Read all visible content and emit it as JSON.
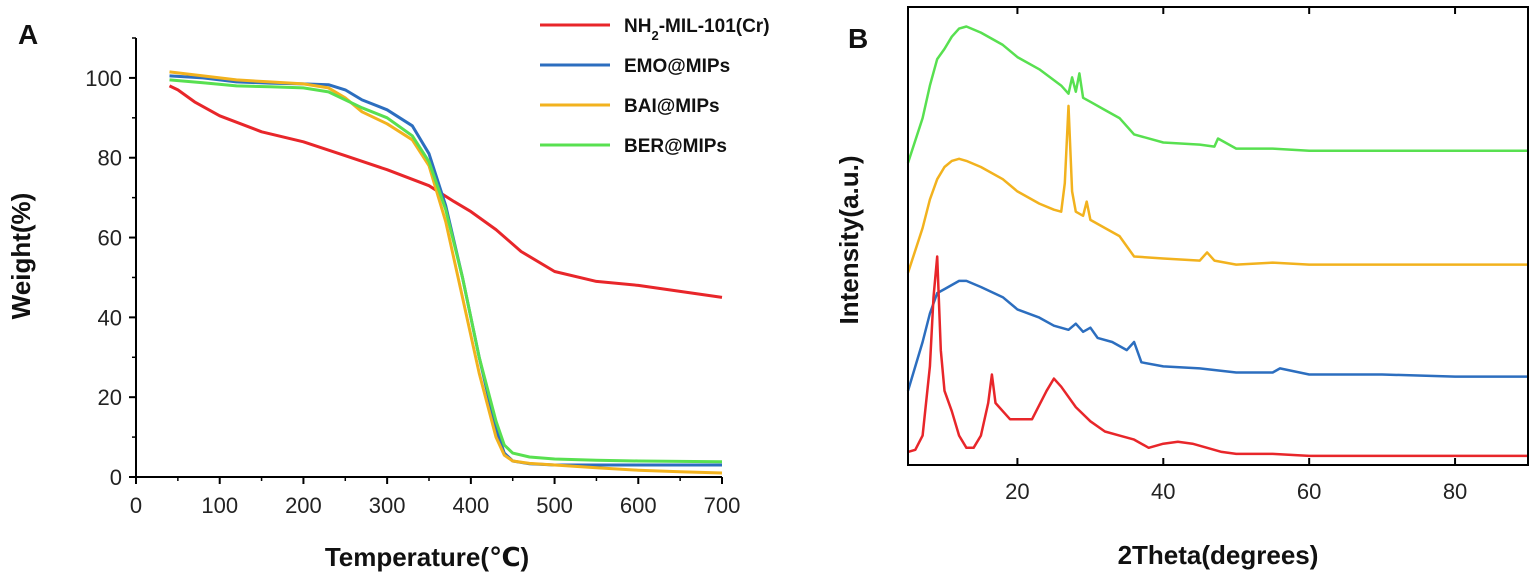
{
  "chart_data": [
    {
      "panel": "A",
      "type": "line",
      "xlabel": "Temperature(℃)",
      "ylabel": "Weight(%)",
      "xlim": [
        0,
        700
      ],
      "ylim": [
        0,
        110
      ],
      "xticks": [
        "0",
        "100",
        "200",
        "300",
        "400",
        "500",
        "600",
        "700"
      ],
      "yticks": [
        "0",
        "20",
        "40",
        "60",
        "80",
        "100"
      ],
      "grid": false,
      "legend_position": "top-right outside",
      "series": [
        {
          "name": "NH₂-MIL-101(Cr)",
          "color": "#e8262a",
          "x": [
            40,
            50,
            70,
            100,
            150,
            200,
            250,
            300,
            350,
            380,
            400,
            430,
            460,
            500,
            550,
            600,
            650,
            700
          ],
          "y": [
            98,
            97,
            94,
            90.5,
            86.5,
            84,
            80.5,
            77,
            73,
            69,
            66.5,
            62,
            56.5,
            51.5,
            49,
            48,
            46.5,
            45
          ]
        },
        {
          "name": "EMO@MIPs",
          "color": "#2c6ebf",
          "x": [
            40,
            80,
            120,
            160,
            200,
            230,
            250,
            270,
            300,
            330,
            350,
            370,
            390,
            410,
            430,
            440,
            450,
            470,
            500,
            550,
            600,
            650,
            700
          ],
          "y": [
            100.5,
            100,
            99,
            98.7,
            98.5,
            98.3,
            97,
            94.5,
            92,
            88,
            81,
            68,
            50,
            30,
            12,
            6,
            4,
            3.3,
            3,
            3,
            3,
            3,
            3
          ]
        },
        {
          "name": "BAI@MIPs",
          "color": "#f2b21e",
          "x": [
            40,
            80,
            120,
            160,
            200,
            230,
            250,
            270,
            300,
            330,
            350,
            370,
            390,
            410,
            430,
            440,
            450,
            470,
            500,
            550,
            600,
            650,
            700
          ],
          "y": [
            101.5,
            100.5,
            99.5,
            99,
            98.5,
            97.5,
            95,
            91.5,
            88.5,
            84.5,
            78,
            64,
            45,
            26,
            10,
            5.5,
            4,
            3.4,
            3,
            2.3,
            1.7,
            1.3,
            1
          ]
        },
        {
          "name": "BER@MIPs",
          "color": "#58e050",
          "x": [
            40,
            80,
            120,
            160,
            200,
            230,
            250,
            270,
            300,
            330,
            350,
            370,
            390,
            410,
            430,
            440,
            450,
            470,
            500,
            550,
            600,
            650,
            700
          ],
          "y": [
            99.5,
            98.8,
            98,
            97.8,
            97.5,
            96.5,
            94.5,
            92.5,
            90,
            85.5,
            79,
            67,
            50,
            30,
            14,
            8,
            6,
            5,
            4.5,
            4.2,
            4,
            3.9,
            3.8
          ]
        }
      ]
    },
    {
      "panel": "B",
      "type": "line",
      "xlabel": "2Theta(degrees)",
      "ylabel": "Intensity(a.u.)",
      "xlim": [
        5,
        90
      ],
      "xticks": [
        "20",
        "40",
        "60",
        "80"
      ],
      "y_ticks_shown": false,
      "grid": false,
      "series": [
        {
          "color": "#58e050",
          "x": [
            5,
            7,
            8,
            9,
            10,
            11,
            12,
            13,
            15,
            18,
            20,
            23,
            26,
            27,
            27.5,
            28,
            28.5,
            29,
            30,
            32,
            34,
            36,
            40,
            45,
            47,
            47.5,
            50,
            55,
            60,
            70,
            80,
            90
          ],
          "y": [
            0.73,
            0.84,
            0.92,
            0.985,
            1.01,
            1.04,
            1.06,
            1.065,
            1.05,
            1.02,
            0.99,
            0.96,
            0.92,
            0.9,
            0.94,
            0.905,
            0.95,
            0.89,
            0.88,
            0.86,
            0.84,
            0.8,
            0.78,
            0.775,
            0.77,
            0.79,
            0.765,
            0.765,
            0.76,
            0.76,
            0.76,
            0.76
          ]
        },
        {
          "color": "#f2b21e",
          "x": [
            5,
            7,
            8,
            9,
            10,
            11,
            12,
            13,
            15,
            18,
            20,
            23,
            25,
            26,
            26.5,
            27,
            27.5,
            28,
            29,
            29.5,
            30,
            32,
            34,
            36,
            40,
            45,
            46,
            47,
            50,
            55,
            60,
            70,
            80,
            90
          ],
          "y": [
            0.46,
            0.57,
            0.64,
            0.69,
            0.72,
            0.735,
            0.74,
            0.735,
            0.72,
            0.69,
            0.66,
            0.63,
            0.615,
            0.61,
            0.68,
            0.87,
            0.66,
            0.61,
            0.6,
            0.635,
            0.59,
            0.57,
            0.55,
            0.5,
            0.495,
            0.49,
            0.51,
            0.49,
            0.48,
            0.485,
            0.48,
            0.48,
            0.48,
            0.48
          ]
        },
        {
          "color": "#2c6ebf",
          "x": [
            5,
            7,
            8,
            9,
            10,
            11,
            12,
            13,
            15,
            18,
            20,
            23,
            25,
            27,
            28,
            29,
            30,
            31,
            33,
            35,
            36,
            37,
            40,
            45,
            50,
            55,
            56,
            60,
            70,
            80,
            90
          ],
          "y": [
            0.17,
            0.29,
            0.36,
            0.41,
            0.42,
            0.43,
            0.44,
            0.44,
            0.425,
            0.4,
            0.37,
            0.35,
            0.33,
            0.32,
            0.335,
            0.315,
            0.325,
            0.3,
            0.29,
            0.27,
            0.29,
            0.24,
            0.23,
            0.225,
            0.215,
            0.215,
            0.225,
            0.21,
            0.21,
            0.205,
            0.205
          ]
        },
        {
          "color": "#e8262a",
          "x": [
            5,
            6,
            7,
            8,
            8.5,
            9,
            9.5,
            10,
            11,
            12,
            13,
            14,
            15,
            16,
            16.5,
            17,
            18,
            19,
            20,
            22,
            24,
            25,
            26,
            28,
            30,
            32,
            34,
            36,
            38,
            40,
            42,
            44,
            46,
            48,
            50,
            55,
            60,
            70,
            80,
            90
          ],
          "y": [
            0.02,
            0.025,
            0.06,
            0.23,
            0.4,
            0.5,
            0.27,
            0.17,
            0.12,
            0.06,
            0.03,
            0.03,
            0.06,
            0.14,
            0.21,
            0.14,
            0.12,
            0.1,
            0.1,
            0.1,
            0.17,
            0.2,
            0.18,
            0.13,
            0.095,
            0.07,
            0.06,
            0.05,
            0.03,
            0.04,
            0.045,
            0.04,
            0.03,
            0.02,
            0.015,
            0.015,
            0.01,
            0.01,
            0.01,
            0.01
          ]
        }
      ]
    }
  ]
}
